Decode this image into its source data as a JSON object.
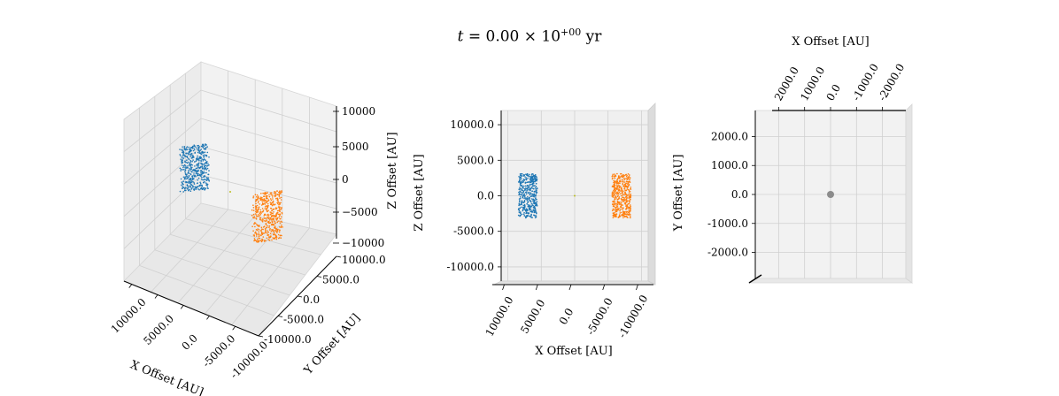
{
  "figure": {
    "title_var": "t",
    "title_eq": " = ",
    "title_value": "0.00",
    "title_times": " × 10",
    "title_exp": "+00",
    "title_unit": " yr"
  },
  "colors": {
    "blue": "#1f77b4",
    "orange": "#ff7f0e",
    "gray": "#8c8c8c",
    "center": "#bcbd22"
  },
  "chart_data": [
    {
      "type": "scatter",
      "view": "3d-perspective",
      "xlabel": "X Offset [AU]",
      "ylabel": "Y Offset [AU]",
      "zlabel": "Z Offset [AU]",
      "x_ticks": [
        "10000.0",
        "5000.0",
        "0.0",
        "-5000.0",
        "-10000.0"
      ],
      "y_ticks": [
        "10000.0",
        "5000.0",
        "0.0",
        "-5000.0",
        "-10000.0"
      ],
      "z_ticks": [
        "10000",
        "5000",
        "0",
        "−5000",
        "−10000"
      ],
      "xlim": [
        -10000,
        10000
      ],
      "ylim": [
        -10000,
        10000
      ],
      "zlim": [
        -10000,
        10000
      ],
      "series": [
        {
          "color": "blue",
          "x_center": 7000,
          "y_center": 5000,
          "z_center": 1500,
          "n_points": 500
        },
        {
          "color": "orange",
          "x_center": -7000,
          "y_center": -5000,
          "z_center": -3500,
          "n_points": 500
        }
      ]
    },
    {
      "type": "scatter",
      "view": "xz-projection",
      "xlabel": "X Offset [AU]",
      "ylabel": "Z Offset [AU]",
      "side_label": "Y Offset [AU]",
      "x_ticks": [
        "10000.0",
        "5000.0",
        "0.0",
        "-5000.0",
        "-10000.0"
      ],
      "y_ticks": [
        "10000.0",
        "5000.0",
        "0.0",
        "-5000.0",
        "-10000.0"
      ],
      "xlim": [
        11000,
        -11000
      ],
      "ylim": [
        -12000,
        12000
      ],
      "series": [
        {
          "color": "blue",
          "x_center": 7000,
          "z_center": 0,
          "x_halfwidth": 1400,
          "z_halfwidth": 3100,
          "n_points": 450
        },
        {
          "color": "orange",
          "x_center": -7000,
          "z_center": 0,
          "x_halfwidth": 1400,
          "z_halfwidth": 3100,
          "n_points": 450
        }
      ]
    },
    {
      "type": "scatter",
      "view": "xy-projection",
      "xlabel": "X Offset [AU]",
      "x_ticks": [
        "2000.0",
        "1000.0",
        "0.0",
        "-1000.0",
        "-2000.0"
      ],
      "y_ticks": [
        "2000.0",
        "1000.0",
        "0.0",
        "-1000.0",
        "-2000.0"
      ],
      "xlim": [
        2900,
        -2900
      ],
      "ylim": [
        -2900,
        2900
      ],
      "series": [
        {
          "color": "gray",
          "x": [
            0
          ],
          "y": [
            0
          ]
        }
      ]
    }
  ]
}
